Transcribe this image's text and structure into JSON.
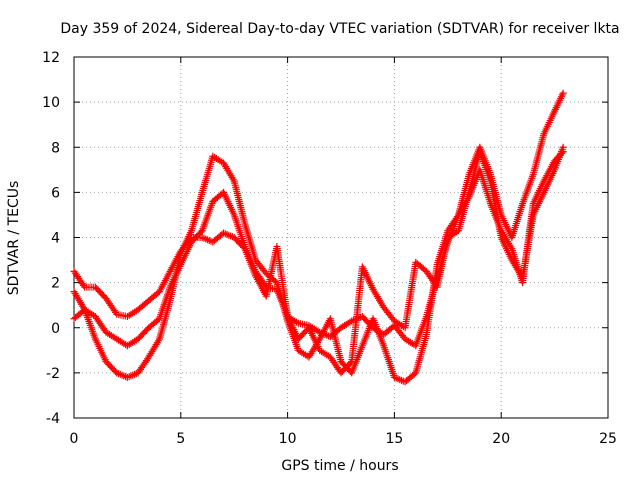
{
  "chart_data": {
    "type": "scatter",
    "title": "Day 359 of 2024, Sidereal Day-to-day VTEC variation (SDTVAR) for receiver lkta",
    "xlabel": "GPS time / hours",
    "ylabel": "SDTVAR / TECUs",
    "xlim": [
      0,
      25
    ],
    "ylim": [
      -4,
      12
    ],
    "xticks": [
      0,
      5,
      10,
      15,
      20,
      25
    ],
    "yticks": [
      -4,
      -2,
      0,
      2,
      4,
      6,
      8,
      10,
      12
    ],
    "grid": true,
    "marker": "+",
    "marker_color": "#ff0000",
    "series": [
      {
        "name": "trace-1",
        "x": [
          0.0,
          0.5,
          1.0,
          1.5,
          2.0,
          2.5,
          3.0,
          3.5,
          4.0,
          4.5,
          5.0,
          5.5,
          6.0,
          6.5,
          7.0,
          7.5,
          8.0,
          8.5,
          9.0,
          9.5,
          10.0,
          10.5,
          11.0,
          11.5,
          12.0,
          12.5,
          13.0,
          13.5,
          14.0,
          14.5,
          15.0,
          15.5,
          16.0,
          16.5,
          17.0,
          17.5,
          18.0,
          18.5,
          19.0,
          19.5,
          20.0,
          20.5,
          21.0,
          21.5,
          22.0,
          22.5,
          22.9
        ],
        "y": [
          1.6,
          0.8,
          -0.5,
          -1.5,
          -2.0,
          -2.2,
          -2.0,
          -1.3,
          -0.5,
          1.2,
          3.3,
          4.3,
          6.0,
          7.6,
          7.3,
          6.5,
          4.6,
          3.0,
          2.4,
          2.0,
          0.3,
          -1.0,
          -1.3,
          -0.5,
          0.4,
          -1.5,
          -2.0,
          -0.8,
          0.4,
          -0.8,
          -2.2,
          -2.4,
          -2.0,
          -0.3,
          2.8,
          4.3,
          5.0,
          6.8,
          8.0,
          6.8,
          5.0,
          4.0,
          5.5,
          6.8,
          8.6,
          9.6,
          10.4
        ]
      },
      {
        "name": "trace-2",
        "x": [
          0.0,
          0.5,
          1.0,
          1.5,
          2.0,
          2.5,
          3.0,
          3.5,
          4.0,
          4.5,
          5.0,
          5.5,
          6.0,
          6.5,
          7.0,
          7.5,
          8.0,
          8.5,
          9.0,
          9.5,
          10.0,
          10.5,
          11.0,
          11.5,
          12.0,
          12.5,
          13.0,
          13.5,
          14.0,
          14.5,
          15.0,
          15.5,
          16.0,
          16.5,
          17.0,
          17.5,
          18.0,
          18.5,
          19.0,
          19.5,
          20.0,
          20.5,
          21.0,
          21.5,
          22.0,
          22.5,
          22.9
        ],
        "y": [
          0.4,
          0.8,
          0.5,
          -0.2,
          -0.5,
          -0.8,
          -0.5,
          0.0,
          0.4,
          1.8,
          2.8,
          3.8,
          4.3,
          5.6,
          6.0,
          5.0,
          3.6,
          2.5,
          1.8,
          1.7,
          0.5,
          0.2,
          0.1,
          -0.2,
          -0.4,
          0.0,
          0.3,
          0.5,
          0.0,
          -0.3,
          0.1,
          -0.5,
          -0.8,
          0.5,
          2.2,
          3.8,
          5.0,
          5.8,
          7.0,
          5.5,
          4.3,
          3.5,
          2.0,
          5.5,
          6.5,
          7.4,
          7.8
        ]
      },
      {
        "name": "trace-3",
        "x": [
          0.0,
          0.5,
          1.0,
          1.5,
          2.0,
          2.5,
          3.0,
          3.5,
          4.0,
          4.5,
          5.0,
          5.5,
          6.0,
          6.5,
          7.0,
          7.5,
          8.0,
          8.5,
          9.0,
          9.5,
          10.0,
          10.5,
          11.0,
          11.5,
          12.0,
          12.5,
          13.0,
          13.5,
          14.0,
          14.5,
          15.0,
          15.5,
          16.0,
          16.5,
          17.0,
          17.5,
          18.0,
          18.5,
          19.0,
          19.5,
          20.0,
          20.5,
          21.0,
          21.5,
          22.0,
          22.5,
          22.9
        ],
        "y": [
          2.5,
          1.8,
          1.8,
          1.3,
          0.6,
          0.5,
          0.8,
          1.2,
          1.6,
          2.5,
          3.4,
          4.0,
          4.0,
          3.8,
          4.2,
          4.0,
          3.5,
          2.3,
          1.4,
          3.6,
          0.5,
          -0.5,
          0.0,
          -1.0,
          -1.3,
          -2.0,
          -1.5,
          2.7,
          1.7,
          0.9,
          0.3,
          0.0,
          2.9,
          2.5,
          1.8,
          4.0,
          4.3,
          6.0,
          7.8,
          6.5,
          4.0,
          3.0,
          2.2,
          5.0,
          6.0,
          7.0,
          8.0
        ]
      }
    ]
  }
}
